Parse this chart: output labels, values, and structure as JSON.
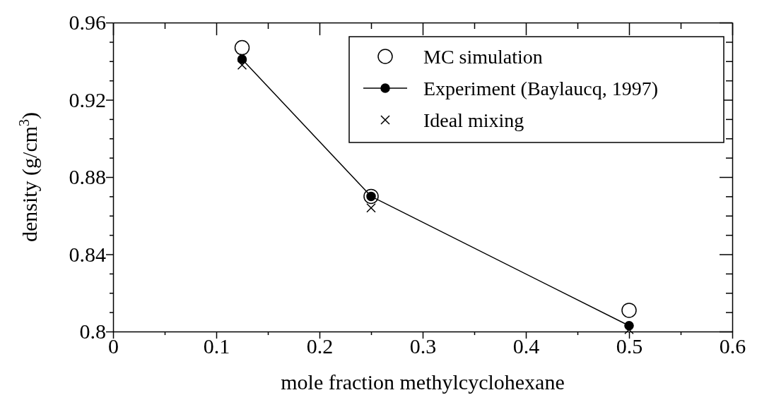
{
  "chart_data": {
    "type": "scatter",
    "xlabel": "mole fraction methylcyclohexane",
    "ylabel": "density (g/cm$^{3}$)",
    "xlim": [
      0,
      0.6
    ],
    "ylim": [
      0.8,
      0.96
    ],
    "xticks": [
      0,
      {
        "value": 0.05,
        "label": null
      },
      0.1,
      {
        "value": 0.15,
        "label": null
      },
      0.2,
      {
        "value": 0.25,
        "label": null
      },
      0.3,
      {
        "value": 0.35,
        "label": null
      },
      0.4,
      {
        "value": 0.45,
        "label": null
      },
      0.5,
      {
        "value": 0.55,
        "label": null
      },
      0.6
    ],
    "yticks": [
      0.8,
      {
        "value": 0.81,
        "label": null
      },
      {
        "value": 0.82,
        "label": null
      },
      {
        "value": 0.83,
        "label": null
      },
      0.84,
      {
        "value": 0.85,
        "label": null
      },
      {
        "value": 0.86,
        "label": null
      },
      {
        "value": 0.87,
        "label": null
      },
      0.88,
      {
        "value": 0.89,
        "label": null
      },
      {
        "value": 0.9,
        "label": null
      },
      {
        "value": 0.91,
        "label": null
      },
      0.92,
      {
        "value": 0.93,
        "label": null
      },
      {
        "value": 0.94,
        "label": null
      },
      {
        "value": 0.95,
        "label": null
      },
      0.96
    ],
    "x": [
      0.125,
      0.25,
      0.5
    ],
    "legend": "top right",
    "grid": false,
    "series": [
      {
        "name": "MC simulation",
        "type": "scatter",
        "marker": "circle",
        "color": "#000000",
        "values": [
          0.947,
          0.87,
          0.811
        ]
      },
      {
        "name": "Experiment (Baylaucq, 1997)",
        "type": "line",
        "marker": "circle",
        "color": "#000000",
        "values": [
          0.941,
          0.87,
          0.803
        ]
      },
      {
        "name": "Ideal mixing",
        "type": "scatter",
        "marker": "cross",
        "color": "#000000",
        "values": [
          0.938,
          0.864,
          0.801
        ]
      }
    ]
  }
}
